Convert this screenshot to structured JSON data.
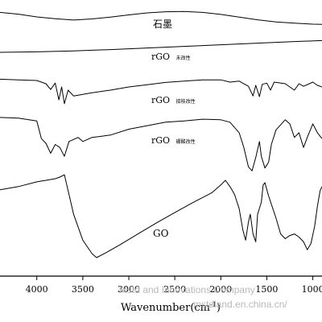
{
  "chart_data": {
    "type": "line",
    "xlabel": "Wavenumber(cm",
    "xlabel_sup": "-1",
    "xlabel_close": ")",
    "xlim": [
      4400,
      900
    ],
    "x_reversed": true,
    "xticks": [
      4000,
      3500,
      3000,
      2500,
      2000,
      1500,
      1000
    ],
    "xtick_labels": [
      "4000",
      "3500",
      "3000",
      "2500",
      "2000",
      "1500",
      "1000"
    ],
    "y_axis_shown": false,
    "grid": false,
    "legend": "none",
    "series": [
      {
        "name": "石墨",
        "color": "#000000",
        "points": [
          [
            4400,
            0.95
          ],
          [
            4200,
            0.87
          ],
          [
            4000,
            0.75
          ],
          [
            3800,
            0.67
          ],
          [
            3600,
            0.61
          ],
          [
            3400,
            0.66
          ],
          [
            3200,
            0.74
          ],
          [
            3000,
            0.84
          ],
          [
            2800,
            0.93
          ],
          [
            2600,
            0.98
          ],
          [
            2400,
            0.99
          ],
          [
            2200,
            0.95
          ],
          [
            2000,
            0.86
          ],
          [
            1800,
            0.74
          ],
          [
            1600,
            0.62
          ],
          [
            1400,
            0.53
          ],
          [
            1200,
            0.47
          ],
          [
            1000,
            0.43
          ],
          [
            900,
            0.42
          ]
        ]
      },
      {
        "name": "rGO 未改性",
        "color": "#000000",
        "points": [
          [
            4400,
            0.05
          ],
          [
            4000,
            0.08
          ],
          [
            3600,
            0.14
          ],
          [
            3200,
            0.22
          ],
          [
            2800,
            0.32
          ],
          [
            2400,
            0.42
          ],
          [
            2000,
            0.52
          ],
          [
            1600,
            0.62
          ],
          [
            1200,
            0.72
          ],
          [
            900,
            0.78
          ]
        ]
      },
      {
        "name": "rGO 接枝改性",
        "color": "#000000",
        "points": [
          [
            4400,
            0.94
          ],
          [
            4200,
            0.92
          ],
          [
            4000,
            0.9
          ],
          [
            3900,
            0.8
          ],
          [
            3850,
            0.62
          ],
          [
            3800,
            0.82
          ],
          [
            3760,
            0.3
          ],
          [
            3730,
            0.7
          ],
          [
            3700,
            0.18
          ],
          [
            3660,
            0.6
          ],
          [
            3600,
            0.42
          ],
          [
            3400,
            0.52
          ],
          [
            3200,
            0.6
          ],
          [
            3000,
            0.7
          ],
          [
            2800,
            0.77
          ],
          [
            2600,
            0.84
          ],
          [
            2400,
            0.88
          ],
          [
            2200,
            0.92
          ],
          [
            2000,
            0.92
          ],
          [
            1900,
            0.85
          ],
          [
            1800,
            0.88
          ],
          [
            1700,
            0.72
          ],
          [
            1650,
            0.42
          ],
          [
            1620,
            0.75
          ],
          [
            1580,
            0.4
          ],
          [
            1550,
            0.78
          ],
          [
            1500,
            0.82
          ],
          [
            1460,
            0.6
          ],
          [
            1420,
            0.85
          ],
          [
            1300,
            0.8
          ],
          [
            1200,
            0.6
          ],
          [
            1150,
            0.8
          ],
          [
            1100,
            0.72
          ],
          [
            1000,
            0.85
          ],
          [
            950,
            0.75
          ],
          [
            900,
            0.7
          ]
        ]
      },
      {
        "name": "rGO 硼酸改性",
        "color": "#000000",
        "points": [
          [
            4400,
            0.96
          ],
          [
            4200,
            0.95
          ],
          [
            4000,
            0.9
          ],
          [
            3950,
            0.6
          ],
          [
            3900,
            0.52
          ],
          [
            3850,
            0.35
          ],
          [
            3800,
            0.5
          ],
          [
            3750,
            0.45
          ],
          [
            3700,
            0.3
          ],
          [
            3650,
            0.55
          ],
          [
            3550,
            0.62
          ],
          [
            3500,
            0.55
          ],
          [
            3400,
            0.62
          ],
          [
            3200,
            0.66
          ],
          [
            3000,
            0.76
          ],
          [
            2800,
            0.82
          ],
          [
            2600,
            0.88
          ],
          [
            2400,
            0.9
          ],
          [
            2200,
            0.93
          ],
          [
            2000,
            0.92
          ],
          [
            1900,
            0.88
          ],
          [
            1800,
            0.7
          ],
          [
            1750,
            0.45
          ],
          [
            1700,
            0.12
          ],
          [
            1660,
            0.05
          ],
          [
            1620,
            0.28
          ],
          [
            1580,
            0.55
          ],
          [
            1560,
            0.3
          ],
          [
            1520,
            0.1
          ],
          [
            1480,
            0.2
          ],
          [
            1450,
            0.5
          ],
          [
            1400,
            0.75
          ],
          [
            1300,
            0.92
          ],
          [
            1250,
            0.85
          ],
          [
            1200,
            0.62
          ],
          [
            1150,
            0.7
          ],
          [
            1100,
            0.45
          ],
          [
            1060,
            0.62
          ],
          [
            1000,
            0.85
          ],
          [
            950,
            0.7
          ],
          [
            900,
            0.6
          ]
        ]
      },
      {
        "name": "GO",
        "color": "#000000",
        "points": [
          [
            4400,
            0.86
          ],
          [
            4200,
            0.9
          ],
          [
            4000,
            0.96
          ],
          [
            3900,
            0.98
          ],
          [
            3800,
            1.0
          ],
          [
            3750,
            1.02
          ],
          [
            3700,
            1.05
          ],
          [
            3660,
            0.85
          ],
          [
            3600,
            0.55
          ],
          [
            3500,
            0.22
          ],
          [
            3400,
            0.05
          ],
          [
            3350,
            0.0
          ],
          [
            3250,
            0.06
          ],
          [
            3100,
            0.16
          ],
          [
            2900,
            0.3
          ],
          [
            2700,
            0.44
          ],
          [
            2500,
            0.57
          ],
          [
            2300,
            0.7
          ],
          [
            2100,
            0.82
          ],
          [
            2000,
            0.92
          ],
          [
            1950,
            0.98
          ],
          [
            1900,
            0.9
          ],
          [
            1850,
            0.8
          ],
          [
            1800,
            0.62
          ],
          [
            1760,
            0.35
          ],
          [
            1730,
            0.22
          ],
          [
            1700,
            0.45
          ],
          [
            1680,
            0.55
          ],
          [
            1650,
            0.3
          ],
          [
            1620,
            0.2
          ],
          [
            1600,
            0.55
          ],
          [
            1560,
            0.7
          ],
          [
            1540,
            0.92
          ],
          [
            1520,
            0.95
          ],
          [
            1480,
            0.78
          ],
          [
            1400,
            0.5
          ],
          [
            1350,
            0.3
          ],
          [
            1300,
            0.24
          ],
          [
            1250,
            0.28
          ],
          [
            1200,
            0.3
          ],
          [
            1150,
            0.26
          ],
          [
            1100,
            0.2
          ],
          [
            1060,
            0.1
          ],
          [
            1020,
            0.18
          ],
          [
            980,
            0.4
          ],
          [
            950,
            0.65
          ],
          [
            920,
            0.85
          ],
          [
            900,
            0.9
          ]
        ]
      }
    ],
    "annotations": [
      {
        "text": "石墨",
        "series": 0
      },
      {
        "text": "rGO",
        "suffix": "未改性",
        "series": 1
      },
      {
        "text": "rGO",
        "suffix": "接枝改性",
        "series": 2
      },
      {
        "text": "rGO",
        "suffix": "硼酸改性",
        "series": 3
      },
      {
        "text": "GO",
        "series": 4
      }
    ],
    "watermark": [
      "Mstd and Innovations Company",
      "mstdland.en.china.cn/"
    ]
  }
}
